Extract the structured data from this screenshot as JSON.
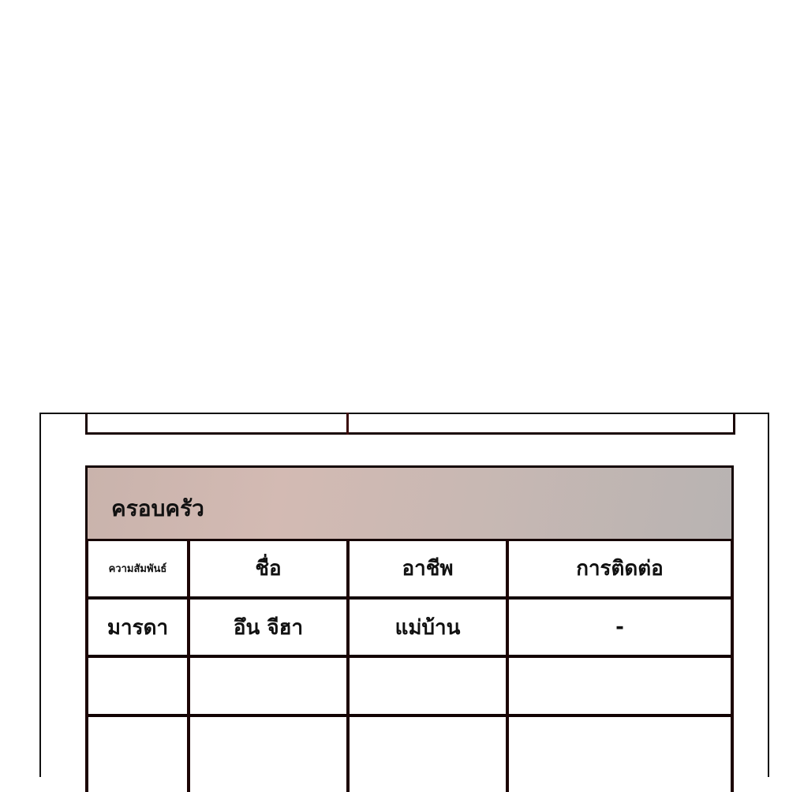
{
  "section_title": "ครอบครัว",
  "columns": [
    "ความสัมพันธ์",
    "ชื่อ",
    "อาชีพ",
    "การติดต่อ"
  ],
  "rows": [
    [
      "มารดา",
      "อึน จีฮา",
      "แม่บ้าน",
      "-"
    ],
    [
      "",
      "",
      "",
      ""
    ],
    [
      "",
      "",
      "",
      ""
    ]
  ],
  "colors": {
    "header_band": "#c9b6b0",
    "border": "#150404"
  }
}
